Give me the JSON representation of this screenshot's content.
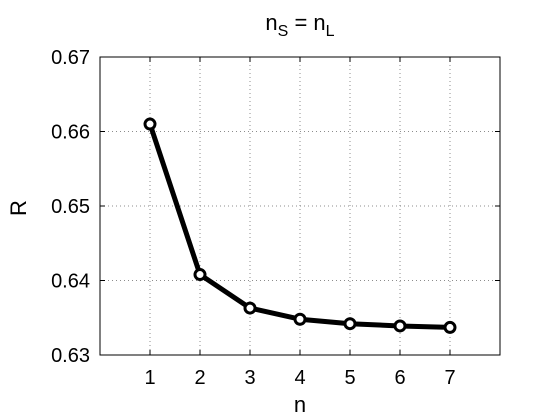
{
  "chart_data": {
    "type": "line",
    "title": {
      "parts": [
        {
          "text": "n",
          "sub": false
        },
        {
          "text": "S",
          "sub": true
        },
        {
          "text": " = n",
          "sub": false
        },
        {
          "text": "L",
          "sub": true
        }
      ]
    },
    "xlabel": "n",
    "ylabel": "R",
    "xlim": [
      0,
      8
    ],
    "ylim": [
      0.63,
      0.67
    ],
    "xticks": [
      1,
      2,
      3,
      4,
      5,
      6,
      7
    ],
    "xtick_labels": [
      "1",
      "2",
      "3",
      "4",
      "5",
      "6",
      "7"
    ],
    "yticks": [
      0.63,
      0.64,
      0.65,
      0.66,
      0.67
    ],
    "ytick_labels": [
      "0.63",
      "0.64",
      "0.65",
      "0.66",
      "0.67"
    ],
    "grid": true,
    "series": [
      {
        "x": [
          1,
          2,
          3,
          4,
          5,
          6,
          7
        ],
        "y": [
          0.661,
          0.6408,
          0.6363,
          0.6348,
          0.6342,
          0.6339,
          0.6337
        ],
        "color": "#000000",
        "marker": "circle"
      }
    ]
  }
}
